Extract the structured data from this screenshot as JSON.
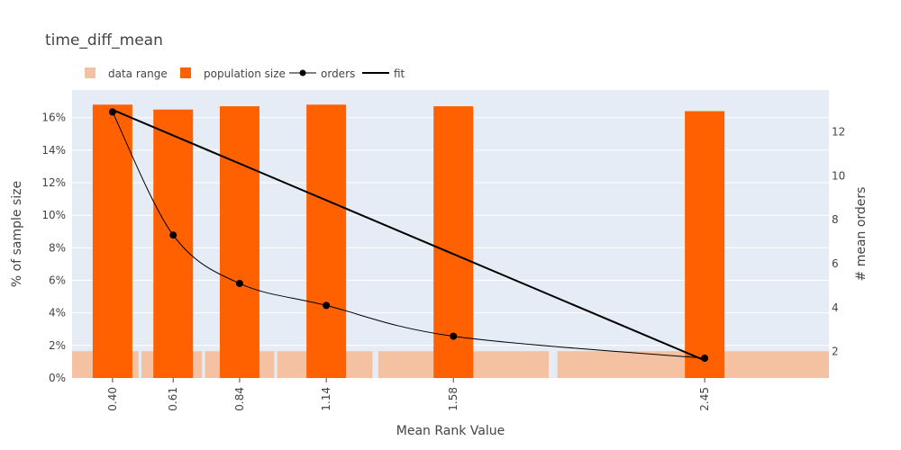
{
  "chart_data": {
    "type": "bar",
    "title": "time_diff_mean",
    "xlabel": "Mean Rank Value",
    "ylabel": "% of sample size",
    "y2label": "# mean orders",
    "x_ticks": [
      "0.40",
      "0.61",
      "0.84",
      "1.14",
      "1.58",
      "2.45"
    ],
    "x_range": [
      0.26,
      2.88
    ],
    "ylim": [
      0,
      0.177
    ],
    "y_ticks": [
      0,
      0.02,
      0.04,
      0.06,
      0.08,
      0.1,
      0.12,
      0.14,
      0.16
    ],
    "y_tick_labels": [
      "0%",
      "2%",
      "4%",
      "6%",
      "8%",
      "10%",
      "12%",
      "14%",
      "16%"
    ],
    "y2lim": [
      0.8,
      13.9
    ],
    "y2_ticks": [
      2,
      4,
      6,
      8,
      10,
      12
    ],
    "grid": true,
    "legend_position": "top-left",
    "series": [
      {
        "name": "data range",
        "kind": "bar",
        "color": "#f4c2a3",
        "x_ranges": [
          [
            0.26,
            0.49
          ],
          [
            0.5,
            0.71
          ],
          [
            0.72,
            0.96
          ],
          [
            0.97,
            1.3
          ],
          [
            1.32,
            1.91
          ],
          [
            1.94,
            2.88
          ]
        ],
        "values": [
          0.0165,
          0.0165,
          0.0165,
          0.0165,
          0.0165,
          0.0165
        ]
      },
      {
        "name": "population size",
        "kind": "bar",
        "color": "#ff6100",
        "x": [
          0.4,
          0.61,
          0.84,
          1.14,
          1.58,
          2.45
        ],
        "values": [
          0.168,
          0.165,
          0.167,
          0.168,
          0.167,
          0.164
        ]
      },
      {
        "name": "orders",
        "kind": "line+markers",
        "axis": "y2",
        "color": "#000000",
        "x": [
          0.4,
          0.61,
          0.84,
          1.14,
          1.58,
          2.45
        ],
        "values": [
          12.9,
          7.3,
          5.1,
          4.1,
          2.7,
          1.7
        ]
      },
      {
        "name": "fit",
        "kind": "line",
        "axis": "y2",
        "color": "#000000",
        "x": [
          0.4,
          2.45
        ],
        "values": [
          13.0,
          1.6
        ]
      }
    ]
  }
}
